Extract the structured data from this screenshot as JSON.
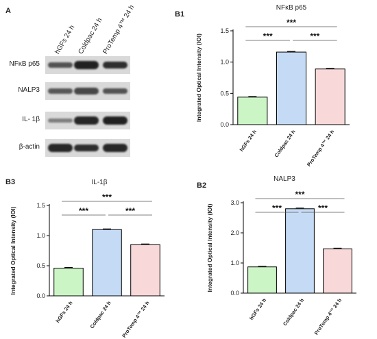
{
  "panel_a": {
    "letter": "A",
    "lanes": [
      "hGFs 24 h",
      "Coldpac 24 h",
      "ProTemp 4™ 24 h"
    ],
    "proteins": [
      {
        "label": "NFκB p65",
        "intensities": [
          0.55,
          0.95,
          0.85
        ]
      },
      {
        "label": "NALP3",
        "intensities": [
          0.5,
          0.65,
          0.55
        ]
      },
      {
        "label": "IL- 1β",
        "intensities": [
          0.2,
          0.9,
          0.95
        ]
      },
      {
        "label": "β-actin",
        "intensities": [
          0.9,
          0.85,
          0.9
        ]
      }
    ]
  },
  "chart_data": [
    {
      "panel": "B1",
      "type": "bar",
      "title": "NFκB p65",
      "ylabel": "Integrated Optical Intensity (IOI)",
      "categories": [
        "hGFs 24 h",
        "Coldpac 24 h",
        "ProTemp 4™ 24 h"
      ],
      "values": [
        0.44,
        1.16,
        0.89
      ],
      "colors": [
        "#ccf5c6",
        "#c5dbf5",
        "#f8d8d8"
      ],
      "ylim": [
        0,
        1.5
      ],
      "yticks": [
        "0.0",
        "0.5",
        "1.0",
        "1.5"
      ],
      "significance": [
        "***",
        "***",
        "***"
      ]
    },
    {
      "panel": "B2",
      "type": "bar",
      "title": "NALP3",
      "ylabel": "Integrated Optical Intensity (IOI)",
      "categories": [
        "hGFs 24 h",
        "Coldpac 24 h",
        "ProTemp 4™ 24 h"
      ],
      "values": [
        0.87,
        2.8,
        1.47
      ],
      "colors": [
        "#ccf5c6",
        "#c5dbf5",
        "#f8d8d8"
      ],
      "ylim": [
        0,
        3.0
      ],
      "yticks": [
        "0.0",
        "1.0",
        "2.0",
        "3.0"
      ],
      "significance": [
        "***",
        "***",
        "***"
      ]
    },
    {
      "panel": "B3",
      "type": "bar",
      "title": "IL-1β",
      "ylabel": "Integrated Optical Intensity (IOI)",
      "categories": [
        "hGFs 24 h",
        "Coldpac 24 h",
        "ProTemp 4™ 24 h"
      ],
      "values": [
        0.46,
        1.1,
        0.85
      ],
      "colors": [
        "#ccf5c6",
        "#c5dbf5",
        "#f8d8d8"
      ],
      "ylim": [
        0,
        1.5
      ],
      "yticks": [
        "0.0",
        "0.5",
        "1.0",
        "1.5"
      ],
      "significance": [
        "***",
        "***",
        "***"
      ]
    }
  ]
}
